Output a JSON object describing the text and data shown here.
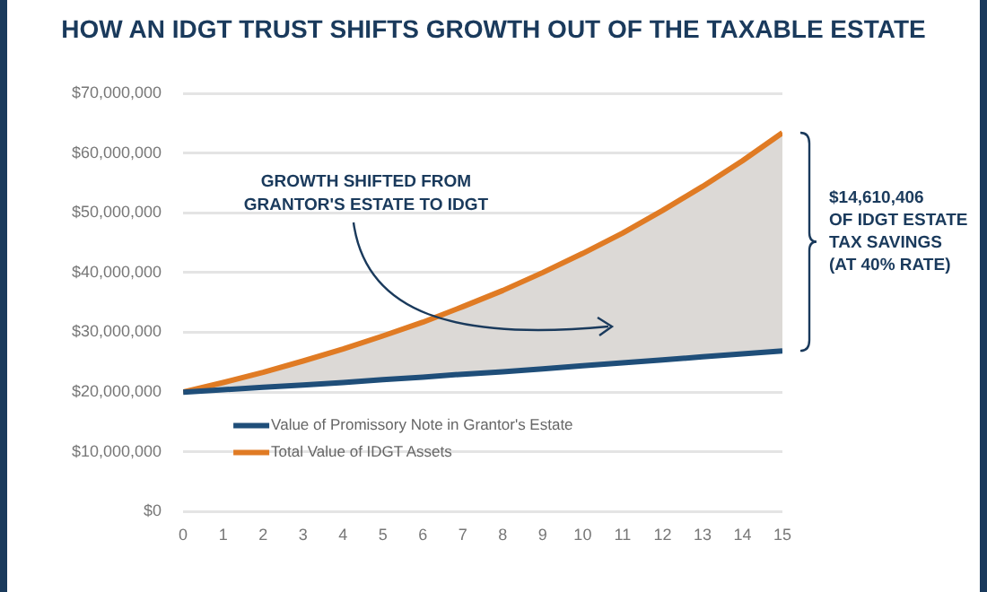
{
  "chart_data": {
    "type": "line",
    "title": "HOW AN IDGT TRUST SHIFTS GROWTH OUT OF THE TAXABLE ESTATE",
    "x": [
      0,
      1,
      2,
      3,
      4,
      5,
      6,
      7,
      8,
      9,
      10,
      11,
      12,
      13,
      14,
      15
    ],
    "series": [
      {
        "name": "Value of Promissory Note in Grantor's Estate",
        "color": "#1f4e79",
        "values": [
          20000000,
          20400000,
          20800000,
          21200000,
          21600000,
          22100000,
          22500000,
          23000000,
          23400000,
          23900000,
          24400000,
          24900000,
          25400000,
          25900000,
          26400000,
          26900000
        ]
      },
      {
        "name": "Total Value of IDGT Assets",
        "color": "#e07b24",
        "values": [
          20000000,
          21600000,
          23300000,
          25200000,
          27200000,
          29400000,
          31700000,
          34300000,
          37000000,
          40000000,
          43200000,
          46600000,
          50400000,
          54400000,
          58700000,
          63400000
        ],
        "lower": [
          20000000,
          20400000,
          20800000,
          21200000,
          21600000,
          22100000,
          22500000,
          23000000,
          23400000,
          23900000,
          24400000,
          24900000,
          25400000,
          25900000,
          26400000,
          26900000
        ],
        "upper": [
          20000000,
          21600000,
          23300000,
          25200000,
          27200000,
          29400000,
          31700000,
          34300000,
          37000000,
          40000000,
          43200000,
          46600000,
          50400000,
          54400000,
          58700000,
          63400000
        ]
      }
    ],
    "xlim": [
      0,
      15
    ],
    "xticks": [
      0,
      1,
      2,
      3,
      4,
      5,
      6,
      7,
      8,
      9,
      10,
      11,
      12,
      13,
      14,
      15
    ],
    "ylim": [
      0,
      70000000
    ],
    "yticks": [
      {
        "value": 0,
        "label": "$0"
      },
      {
        "value": 10000000,
        "label": "$10,000,000"
      },
      {
        "value": 20000000,
        "label": "$20,000,000"
      },
      {
        "value": 30000000,
        "label": "$30,000,000"
      },
      {
        "value": 40000000,
        "label": "$40,000,000"
      },
      {
        "value": 50000000,
        "label": "$50,000,000"
      },
      {
        "value": 60000000,
        "label": "$60,000,000"
      },
      {
        "value": 70000000,
        "label": "$70,000,000"
      }
    ],
    "grid": "y",
    "legend": "bottom left",
    "marker": "none",
    "line_style": "solid",
    "annotations": [
      "GROWTH SHIFTED FROM\nGRANTOR'S ESTATE TO IDGT",
      "$14,610,406\nOF IDGT ESTATE\nTAX SAVINGS\n(AT 40% RATE)"
    ]
  }
}
